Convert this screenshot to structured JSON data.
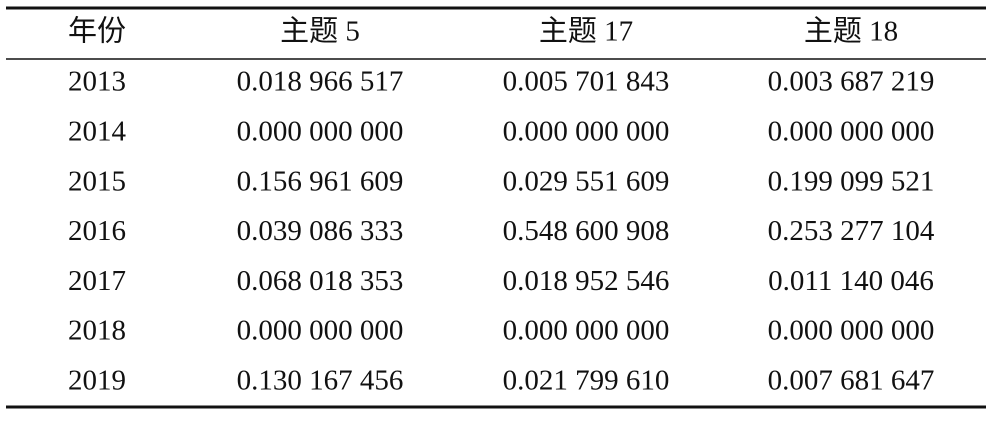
{
  "table": {
    "header": [
      "年份",
      "主题 5",
      "主题 17",
      "主题 18"
    ],
    "rows": [
      [
        "2013",
        "0.018 966 517",
        "0.005 701 843",
        "0.003 687 219"
      ],
      [
        "2014",
        "0.000 000 000",
        "0.000 000 000",
        "0.000 000 000"
      ],
      [
        "2015",
        "0.156 961 609",
        "0.029 551 609",
        "0.199 099 521"
      ],
      [
        "2016",
        "0.039 086 333",
        "0.548 600 908",
        "0.253 277 104"
      ],
      [
        "2017",
        "0.068 018 353",
        "0.018 952 546",
        "0.011 140 046"
      ],
      [
        "2018",
        "0.000 000 000",
        "0.000 000 000",
        "0.000 000 000"
      ],
      [
        "2019",
        "0.130 167 456",
        "0.021 799 610",
        "0.007 681 647"
      ]
    ]
  }
}
